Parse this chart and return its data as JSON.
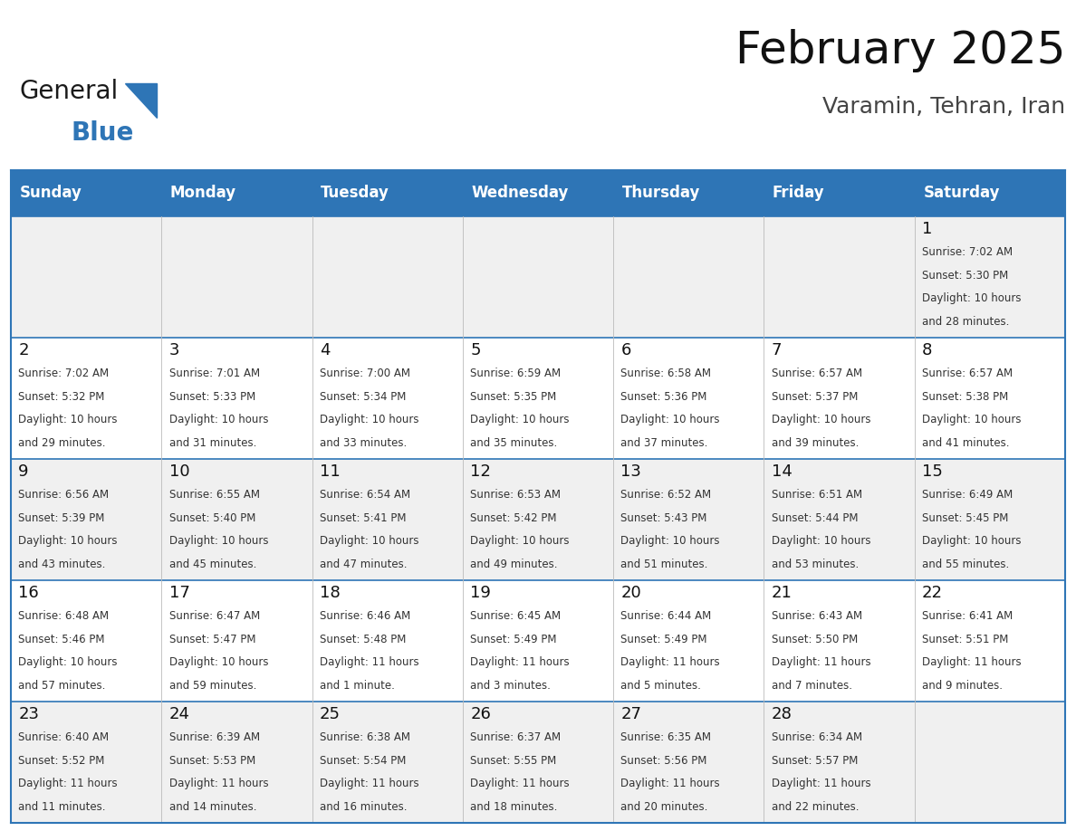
{
  "title": "February 2025",
  "subtitle": "Varamin, Tehran, Iran",
  "header_color": "#2e75b6",
  "header_text_color": "#ffffff",
  "bg_color": "#ffffff",
  "cell_bg_even": "#f0f0f0",
  "cell_bg_odd": "#ffffff",
  "border_color": "#2e75b6",
  "day_headers": [
    "Sunday",
    "Monday",
    "Tuesday",
    "Wednesday",
    "Thursday",
    "Friday",
    "Saturday"
  ],
  "days": [
    {
      "day": 1,
      "col": 6,
      "row": 0,
      "sunrise": "7:02 AM",
      "sunset": "5:30 PM",
      "daylight_h": "10 hours",
      "daylight_m": "28 minutes."
    },
    {
      "day": 2,
      "col": 0,
      "row": 1,
      "sunrise": "7:02 AM",
      "sunset": "5:32 PM",
      "daylight_h": "10 hours",
      "daylight_m": "29 minutes."
    },
    {
      "day": 3,
      "col": 1,
      "row": 1,
      "sunrise": "7:01 AM",
      "sunset": "5:33 PM",
      "daylight_h": "10 hours",
      "daylight_m": "31 minutes."
    },
    {
      "day": 4,
      "col": 2,
      "row": 1,
      "sunrise": "7:00 AM",
      "sunset": "5:34 PM",
      "daylight_h": "10 hours",
      "daylight_m": "33 minutes."
    },
    {
      "day": 5,
      "col": 3,
      "row": 1,
      "sunrise": "6:59 AM",
      "sunset": "5:35 PM",
      "daylight_h": "10 hours",
      "daylight_m": "35 minutes."
    },
    {
      "day": 6,
      "col": 4,
      "row": 1,
      "sunrise": "6:58 AM",
      "sunset": "5:36 PM",
      "daylight_h": "10 hours",
      "daylight_m": "37 minutes."
    },
    {
      "day": 7,
      "col": 5,
      "row": 1,
      "sunrise": "6:57 AM",
      "sunset": "5:37 PM",
      "daylight_h": "10 hours",
      "daylight_m": "39 minutes."
    },
    {
      "day": 8,
      "col": 6,
      "row": 1,
      "sunrise": "6:57 AM",
      "sunset": "5:38 PM",
      "daylight_h": "10 hours",
      "daylight_m": "41 minutes."
    },
    {
      "day": 9,
      "col": 0,
      "row": 2,
      "sunrise": "6:56 AM",
      "sunset": "5:39 PM",
      "daylight_h": "10 hours",
      "daylight_m": "43 minutes."
    },
    {
      "day": 10,
      "col": 1,
      "row": 2,
      "sunrise": "6:55 AM",
      "sunset": "5:40 PM",
      "daylight_h": "10 hours",
      "daylight_m": "45 minutes."
    },
    {
      "day": 11,
      "col": 2,
      "row": 2,
      "sunrise": "6:54 AM",
      "sunset": "5:41 PM",
      "daylight_h": "10 hours",
      "daylight_m": "47 minutes."
    },
    {
      "day": 12,
      "col": 3,
      "row": 2,
      "sunrise": "6:53 AM",
      "sunset": "5:42 PM",
      "daylight_h": "10 hours",
      "daylight_m": "49 minutes."
    },
    {
      "day": 13,
      "col": 4,
      "row": 2,
      "sunrise": "6:52 AM",
      "sunset": "5:43 PM",
      "daylight_h": "10 hours",
      "daylight_m": "51 minutes."
    },
    {
      "day": 14,
      "col": 5,
      "row": 2,
      "sunrise": "6:51 AM",
      "sunset": "5:44 PM",
      "daylight_h": "10 hours",
      "daylight_m": "53 minutes."
    },
    {
      "day": 15,
      "col": 6,
      "row": 2,
      "sunrise": "6:49 AM",
      "sunset": "5:45 PM",
      "daylight_h": "10 hours",
      "daylight_m": "55 minutes."
    },
    {
      "day": 16,
      "col": 0,
      "row": 3,
      "sunrise": "6:48 AM",
      "sunset": "5:46 PM",
      "daylight_h": "10 hours",
      "daylight_m": "57 minutes."
    },
    {
      "day": 17,
      "col": 1,
      "row": 3,
      "sunrise": "6:47 AM",
      "sunset": "5:47 PM",
      "daylight_h": "10 hours",
      "daylight_m": "59 minutes."
    },
    {
      "day": 18,
      "col": 2,
      "row": 3,
      "sunrise": "6:46 AM",
      "sunset": "5:48 PM",
      "daylight_h": "11 hours",
      "daylight_m": "1 minute."
    },
    {
      "day": 19,
      "col": 3,
      "row": 3,
      "sunrise": "6:45 AM",
      "sunset": "5:49 PM",
      "daylight_h": "11 hours",
      "daylight_m": "3 minutes."
    },
    {
      "day": 20,
      "col": 4,
      "row": 3,
      "sunrise": "6:44 AM",
      "sunset": "5:49 PM",
      "daylight_h": "11 hours",
      "daylight_m": "5 minutes."
    },
    {
      "day": 21,
      "col": 5,
      "row": 3,
      "sunrise": "6:43 AM",
      "sunset": "5:50 PM",
      "daylight_h": "11 hours",
      "daylight_m": "7 minutes."
    },
    {
      "day": 22,
      "col": 6,
      "row": 3,
      "sunrise": "6:41 AM",
      "sunset": "5:51 PM",
      "daylight_h": "11 hours",
      "daylight_m": "9 minutes."
    },
    {
      "day": 23,
      "col": 0,
      "row": 4,
      "sunrise": "6:40 AM",
      "sunset": "5:52 PM",
      "daylight_h": "11 hours",
      "daylight_m": "11 minutes."
    },
    {
      "day": 24,
      "col": 1,
      "row": 4,
      "sunrise": "6:39 AM",
      "sunset": "5:53 PM",
      "daylight_h": "11 hours",
      "daylight_m": "14 minutes."
    },
    {
      "day": 25,
      "col": 2,
      "row": 4,
      "sunrise": "6:38 AM",
      "sunset": "5:54 PM",
      "daylight_h": "11 hours",
      "daylight_m": "16 minutes."
    },
    {
      "day": 26,
      "col": 3,
      "row": 4,
      "sunrise": "6:37 AM",
      "sunset": "5:55 PM",
      "daylight_h": "11 hours",
      "daylight_m": "18 minutes."
    },
    {
      "day": 27,
      "col": 4,
      "row": 4,
      "sunrise": "6:35 AM",
      "sunset": "5:56 PM",
      "daylight_h": "11 hours",
      "daylight_m": "20 minutes."
    },
    {
      "day": 28,
      "col": 5,
      "row": 4,
      "sunrise": "6:34 AM",
      "sunset": "5:57 PM",
      "daylight_h": "11 hours",
      "daylight_m": "22 minutes."
    }
  ],
  "num_rows": 5,
  "num_cols": 7,
  "logo_text_general": "General",
  "logo_text_blue": "Blue",
  "logo_color_general": "#1a1a1a",
  "logo_color_blue": "#2e75b6",
  "logo_triangle_color": "#2e75b6",
  "title_fontsize": 36,
  "subtitle_fontsize": 18,
  "header_fontsize": 12,
  "day_num_fontsize": 13,
  "cell_text_fontsize": 8.5
}
